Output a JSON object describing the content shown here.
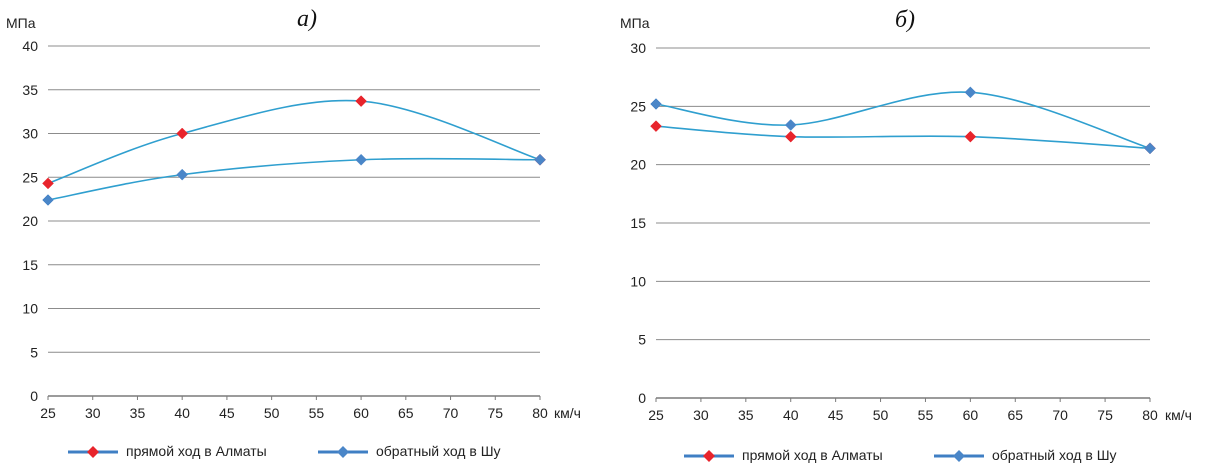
{
  "chart_data": [
    {
      "type": "line",
      "title": "а)",
      "ylabel": "МПа",
      "xlabel": "км/ч",
      "x": [
        25,
        40,
        60,
        80
      ],
      "xticks": [
        25,
        30,
        35,
        40,
        45,
        50,
        55,
        60,
        65,
        70,
        75,
        80
      ],
      "yticks": [
        0,
        5,
        10,
        15,
        20,
        25,
        30,
        35,
        40
      ],
      "xlim": [
        25,
        80
      ],
      "ylim": [
        0,
        40
      ],
      "grid": "horizontal",
      "legend_position": "bottom",
      "series": [
        {
          "name": "прямой ход в Алматы",
          "values": [
            24.3,
            30.0,
            33.7,
            27.0
          ],
          "line_color": "#2f9fcf",
          "marker_color": "#e8242c",
          "marker": "diamond"
        },
        {
          "name": "обратный ход в Шу",
          "values": [
            22.4,
            25.3,
            27.0,
            27.0
          ],
          "line_color": "#2f9fcf",
          "marker_color": "#4a86c8",
          "marker": "diamond"
        }
      ]
    },
    {
      "type": "line",
      "title": "б)",
      "ylabel": "МПа",
      "xlabel": "км/ч",
      "x": [
        25,
        40,
        60,
        80
      ],
      "xticks": [
        25,
        30,
        35,
        40,
        45,
        50,
        55,
        60,
        65,
        70,
        75,
        80
      ],
      "yticks": [
        0,
        5,
        10,
        15,
        20,
        25,
        30
      ],
      "xlim": [
        25,
        80
      ],
      "ylim": [
        0,
        30
      ],
      "grid": "horizontal",
      "legend_position": "bottom",
      "series": [
        {
          "name": "прямой ход в Алматы",
          "values": [
            23.3,
            22.4,
            22.4,
            21.4
          ],
          "line_color": "#2f9fcf",
          "marker_color": "#e8242c",
          "marker": "diamond"
        },
        {
          "name": "обратный ход в Шу",
          "values": [
            25.2,
            23.4,
            26.2,
            21.4
          ],
          "line_color": "#2f9fcf",
          "marker_color": "#4a86c8",
          "marker": "diamond"
        }
      ]
    }
  ]
}
